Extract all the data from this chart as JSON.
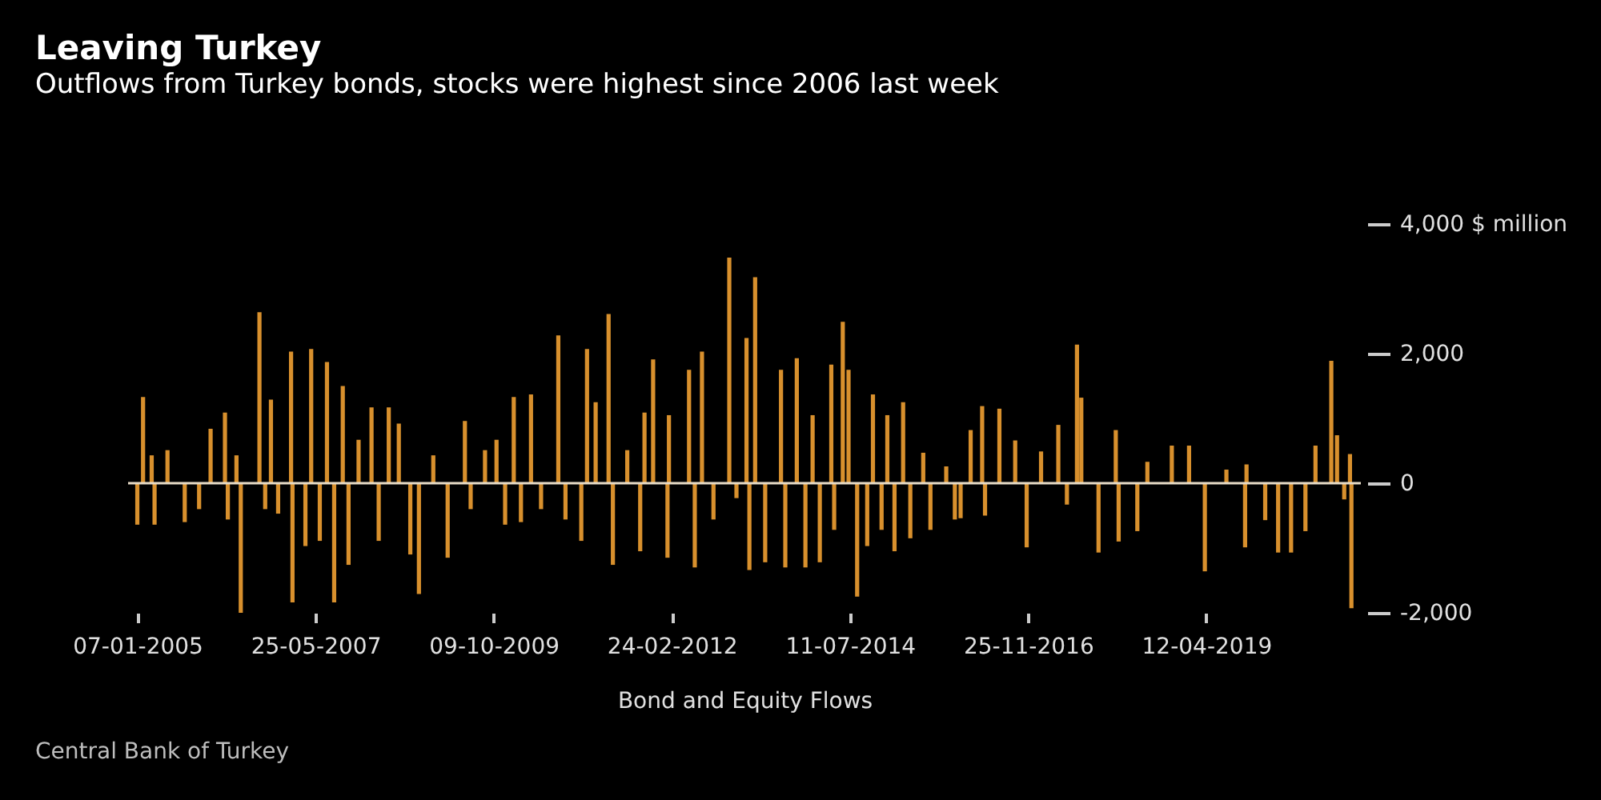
{
  "chart_data": {
    "type": "bar",
    "title": "Leaving Turkey",
    "subtitle": "Outflows from Turkey bonds, stocks were highest since 2006 last week",
    "xlabel": "Bond and Equity Flows",
    "annotations": [
      "Central Bank of Turkey"
    ],
    "color": "#f0a032",
    "x": [
      "2005-01-07",
      "2005-02-04",
      "2005-03-18",
      "2005-04-01",
      "2005-06-03",
      "2005-08-26",
      "2005-11-04",
      "2005-12-30",
      "2006-03-10",
      "2006-03-24",
      "2006-05-05",
      "2006-05-26",
      "2006-08-25",
      "2006-09-22",
      "2006-10-20",
      "2006-11-24",
      "2007-01-26",
      "2007-02-02",
      "2007-04-06",
      "2007-05-04",
      "2007-06-15",
      "2007-07-20",
      "2007-08-24",
      "2007-10-05",
      "2007-11-02",
      "2007-12-21",
      "2008-02-22",
      "2008-03-28",
      "2008-05-16",
      "2008-07-04",
      "2008-08-29",
      "2008-10-10",
      "2008-12-19",
      "2009-02-27",
      "2009-05-22",
      "2009-06-19",
      "2009-08-28",
      "2009-10-23",
      "2009-12-04",
      "2010-01-15",
      "2010-02-19",
      "2010-04-09",
      "2010-05-28",
      "2010-08-20",
      "2010-09-24",
      "2010-12-10",
      "2011-01-07",
      "2011-02-18",
      "2011-04-22",
      "2011-05-13",
      "2011-07-22",
      "2011-09-23",
      "2011-10-14",
      "2011-11-25",
      "2012-02-03",
      "2012-02-10",
      "2012-05-18",
      "2012-06-15",
      "2012-07-20",
      "2012-09-14",
      "2012-11-30",
      "2013-01-04",
      "2013-02-22",
      "2013-03-08",
      "2013-04-05",
      "2013-05-24",
      "2013-08-09",
      "2013-08-30",
      "2013-10-25",
      "2013-12-06",
      "2014-01-10",
      "2014-02-14",
      "2014-04-11",
      "2014-04-25",
      "2014-06-06",
      "2014-07-04",
      "2014-08-15",
      "2014-10-03",
      "2014-10-31",
      "2014-12-12",
      "2015-01-09",
      "2015-02-13",
      "2015-03-27",
      "2015-05-01",
      "2015-07-03",
      "2015-08-07",
      "2015-10-23",
      "2015-12-04",
      "2016-01-01",
      "2016-02-19",
      "2016-04-15",
      "2016-04-29",
      "2016-07-08",
      "2016-09-23",
      "2016-11-18",
      "2017-01-27",
      "2017-04-21",
      "2017-06-02",
      "2017-07-21",
      "2017-08-11",
      "2017-11-03",
      "2018-01-26",
      "2018-02-09",
      "2018-05-11",
      "2018-06-29",
      "2018-10-26",
      "2019-01-18",
      "2019-04-05",
      "2019-07-19",
      "2019-10-18",
      "2019-10-25",
      "2020-01-24",
      "2020-03-27",
      "2020-05-29",
      "2020-08-07",
      "2020-09-25",
      "2020-12-11",
      "2021-01-08",
      "2021-02-12",
      "2021-03-12",
      "2021-03-19"
    ],
    "values": [
      -640,
      1330,
      430,
      -640,
      510,
      -600,
      -400,
      840,
      1090,
      -560,
      430,
      -2000,
      2640,
      -400,
      1290,
      -470,
      2030,
      -1840,
      -970,
      2070,
      -890,
      1870,
      -1840,
      1500,
      -1260,
      670,
      1170,
      -890,
      1170,
      920,
      -1100,
      -1710,
      430,
      -1150,
      960,
      -400,
      510,
      670,
      -640,
      1330,
      -600,
      1370,
      -400,
      2280,
      -560,
      -890,
      2070,
      1250,
      2610,
      -1260,
      510,
      -1050,
      1090,
      1910,
      -1150,
      1050,
      1750,
      -1300,
      2030,
      -560,
      3480,
      -230,
      2240,
      -1340,
      3180,
      -1220,
      1750,
      -1300,
      1930,
      -1300,
      1050,
      -1220,
      1830,
      -720,
      2490,
      1750,
      -1750,
      -970,
      1370,
      -720,
      1050,
      -1050,
      1250,
      -850,
      470,
      -720,
      260,
      -560,
      -540,
      820,
      1190,
      -500,
      1150,
      660,
      -990,
      490,
      900,
      -330,
      2140,
      1320,
      -1070,
      820,
      -900,
      -740,
      330,
      580,
      580,
      -1360,
      210,
      -990,
      290,
      -570,
      -1070,
      -1070,
      -740,
      580,
      1890,
      740,
      -250,
      450,
      -1930
    ],
    "xlim": [
      "2005-01-01",
      "2021-03-26"
    ],
    "xticks": [
      {
        "value": "2005-01-07",
        "label": "07-01-2005"
      },
      {
        "value": "2007-05-25",
        "label": "25-05-2007"
      },
      {
        "value": "2009-10-09",
        "label": "09-10-2009"
      },
      {
        "value": "2012-02-24",
        "label": "24-02-2012"
      },
      {
        "value": "2014-07-11",
        "label": "11-07-2014"
      },
      {
        "value": "2016-11-25",
        "label": "25-11-2016"
      },
      {
        "value": "2019-04-12",
        "label": "12-04-2019"
      }
    ],
    "ylim": [
      -2000,
      4000
    ],
    "yticks": [
      {
        "value": -2000,
        "label": "-2,000"
      },
      0,
      {
        "value": 2000,
        "label": "2,000"
      },
      {
        "value": 4000,
        "label": "4,000 $ million"
      }
    ],
    "ref_lines": [
      {
        "axis": "y",
        "value": 0,
        "color": "#e8dcc8"
      }
    ]
  }
}
